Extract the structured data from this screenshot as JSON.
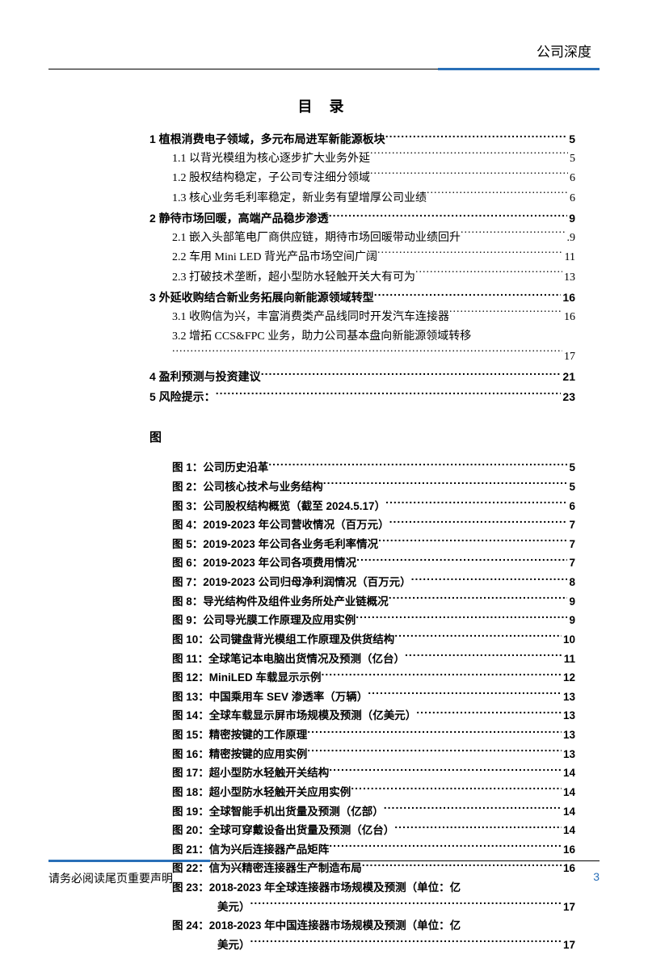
{
  "header": {
    "doc_type": "公司深度"
  },
  "toc_title": "目 录",
  "sections": [
    {
      "type": "h1",
      "label": "1 植根消费电子领域，多元布局进军新能源板块",
      "page": "5"
    },
    {
      "type": "h2",
      "label": "1.1 以背光模组为核心逐步扩大业务外延",
      "page": "5"
    },
    {
      "type": "h2",
      "label": "1.2 股权结构稳定，子公司专注细分领域",
      "page": "6"
    },
    {
      "type": "h2",
      "label": "1.3 核心业务毛利率稳定，新业务有望增厚公司业绩",
      "page": "6"
    },
    {
      "type": "h1",
      "label": "2 静待市场回暖，高端产品稳步渗透",
      "page": "9"
    },
    {
      "type": "h2",
      "label": "2.1 嵌入头部笔电厂商供应链，期待市场回暖带动业绩回升",
      "page": ".9"
    },
    {
      "type": "h2",
      "label": "2.2 车用 Mini LED 背光产品市场空间广阔",
      "page": "11"
    },
    {
      "type": "h2",
      "label": "2.3 打破技术垄断，超小型防水轻触开关大有可为",
      "page": "13"
    },
    {
      "type": "h1",
      "label": "3 外延收购结合新业务拓展向新能源领域转型",
      "page": "16"
    },
    {
      "type": "h2",
      "label": "3.1 收购信为兴，丰富消费类产品线同时开发汽车连接器",
      "page": "16"
    },
    {
      "type": "h2wrap",
      "label": "3.2 增拓 CCS&FPC 业务，助力公司基本盘向新能源领域转移",
      "page": "17"
    },
    {
      "type": "h1",
      "label": "4 盈利预测与投资建议",
      "page": "21"
    },
    {
      "type": "h1",
      "label": "5 风险提示：",
      "page": "23"
    }
  ],
  "figures_heading": "图",
  "figures": [
    {
      "label": "图 1：公司历史沿革",
      "page": "5"
    },
    {
      "label": "图 2：公司核心技术与业务结构",
      "page": "5"
    },
    {
      "label": "图 3：公司股权结构概览（截至 2024.5.17）",
      "page": "6"
    },
    {
      "label": "图 4：2019-2023 年公司营收情况（百万元）",
      "page": "7"
    },
    {
      "label": "图 5：2019-2023 年公司各业务毛利率情况",
      "page": "7"
    },
    {
      "label": "图 6：2019-2023 年公司各项费用情况",
      "page": "7"
    },
    {
      "label": "图 7：2019-2023 公司归母净利润情况（百万元）",
      "page": "8"
    },
    {
      "label": "图 8：导光结构件及组件业务所处产业链概况",
      "page": "9"
    },
    {
      "label": "图 9：公司导光膜工作原理及应用实例",
      "page": "9"
    },
    {
      "label": "图 10：公司键盘背光模组工作原理及供货结构",
      "page": "10"
    },
    {
      "label": "图 11：全球笔记本电脑出货情况及预测（亿台）",
      "page": "11"
    },
    {
      "label": "图 12：MiniLED 车载显示示例",
      "page": "12"
    },
    {
      "label": "图 13：中国乘用车 SEV 渗透率（万辆）",
      "page": "13"
    },
    {
      "label": "图 14：全球车载显示屏市场规模及预测（亿美元）",
      "page": "13"
    },
    {
      "label": "图 15：精密按键的工作原理",
      "page": "13"
    },
    {
      "label": "图 16：精密按键的应用实例",
      "page": "13"
    },
    {
      "label": "图 17：超小型防水轻触开关结构",
      "page": "14"
    },
    {
      "label": "图 18：超小型防水轻触开关应用实例",
      "page": "14"
    },
    {
      "label": "图 19：全球智能手机出货量及预测（亿部）",
      "page": "14"
    },
    {
      "label": "图 20：全球可穿戴设备出货量及预测（亿台）",
      "page": "14"
    },
    {
      "label": "图 21：信为兴后连接器产品矩阵",
      "page": "16"
    },
    {
      "label": "图 22：信为兴精密连接器生产制造布局",
      "page": "16"
    },
    {
      "wrap": true,
      "label1": "图 23：2018-2023 年全球连接器市场规模及预测（单位：亿",
      "label2": "美元）",
      "page": "17"
    },
    {
      "wrap": true,
      "label1": "图 24：2018-2023 年中国连接器市场规模及预测（单位：亿",
      "label2": "美元）",
      "page": "17"
    }
  ],
  "footer": {
    "disclaimer": "请务必阅读尾页重要声明",
    "page_number": "3"
  }
}
